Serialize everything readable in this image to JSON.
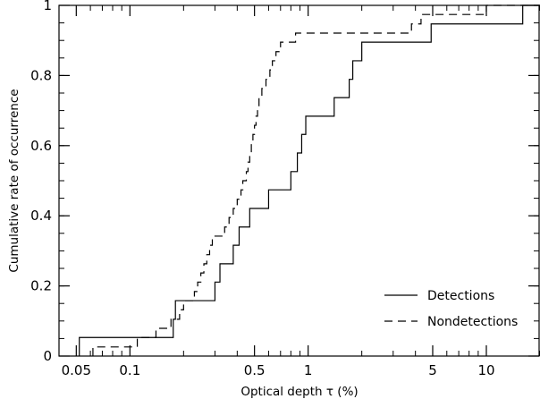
{
  "chart_data": {
    "type": "line",
    "step": true,
    "xscale": "log",
    "xlabel": "Optical depth τ (%)",
    "ylabel": "Cumulative rate of occurrence",
    "xlim": [
      0.04,
      20
    ],
    "ylim": [
      0,
      1
    ],
    "xticks": [
      {
        "value": 0.05,
        "label": "0.05"
      },
      {
        "value": 0.1,
        "label": "0.1"
      },
      {
        "value": 0.5,
        "label": "0.5"
      },
      {
        "value": 1,
        "label": "1"
      },
      {
        "value": 5,
        "label": "5"
      },
      {
        "value": 10,
        "label": "10"
      }
    ],
    "yticks": [
      {
        "value": 0,
        "label": "0"
      },
      {
        "value": 0.2,
        "label": "0.2"
      },
      {
        "value": 0.4,
        "label": "0.4"
      },
      {
        "value": 0.6,
        "label": "0.6"
      },
      {
        "value": 0.8,
        "label": "0.8"
      },
      {
        "value": 1,
        "label": "1"
      }
    ],
    "legend_position": "bottom-right",
    "series": [
      {
        "name": "Detections",
        "style": "solid",
        "points": [
          [
            0.052,
            0.0
          ],
          [
            0.052,
            0.053
          ],
          [
            0.175,
            0.053
          ],
          [
            0.175,
            0.105
          ],
          [
            0.18,
            0.105
          ],
          [
            0.18,
            0.158
          ],
          [
            0.3,
            0.158
          ],
          [
            0.3,
            0.211
          ],
          [
            0.32,
            0.211
          ],
          [
            0.32,
            0.263
          ],
          [
            0.38,
            0.263
          ],
          [
            0.38,
            0.316
          ],
          [
            0.41,
            0.316
          ],
          [
            0.41,
            0.368
          ],
          [
            0.47,
            0.368
          ],
          [
            0.47,
            0.421
          ],
          [
            0.6,
            0.421
          ],
          [
            0.6,
            0.474
          ],
          [
            0.8,
            0.474
          ],
          [
            0.8,
            0.526
          ],
          [
            0.87,
            0.526
          ],
          [
            0.87,
            0.579
          ],
          [
            0.92,
            0.579
          ],
          [
            0.92,
            0.632
          ],
          [
            0.97,
            0.632
          ],
          [
            0.97,
            0.684
          ],
          [
            1.4,
            0.684
          ],
          [
            1.4,
            0.737
          ],
          [
            1.7,
            0.737
          ],
          [
            1.7,
            0.789
          ],
          [
            1.78,
            0.789
          ],
          [
            1.78,
            0.842
          ],
          [
            2.0,
            0.842
          ],
          [
            2.0,
            0.895
          ],
          [
            4.9,
            0.895
          ],
          [
            4.9,
            0.947
          ],
          [
            16.0,
            0.947
          ],
          [
            16.0,
            1.0
          ],
          [
            20.0,
            1.0
          ]
        ]
      },
      {
        "name": "Nondetections",
        "style": "dashed",
        "points": [
          [
            0.062,
            0.0
          ],
          [
            0.062,
            0.026
          ],
          [
            0.11,
            0.026
          ],
          [
            0.11,
            0.053
          ],
          [
            0.14,
            0.053
          ],
          [
            0.14,
            0.079
          ],
          [
            0.17,
            0.079
          ],
          [
            0.17,
            0.105
          ],
          [
            0.19,
            0.105
          ],
          [
            0.19,
            0.132
          ],
          [
            0.2,
            0.132
          ],
          [
            0.2,
            0.158
          ],
          [
            0.23,
            0.158
          ],
          [
            0.23,
            0.184
          ],
          [
            0.24,
            0.184
          ],
          [
            0.24,
            0.211
          ],
          [
            0.25,
            0.211
          ],
          [
            0.25,
            0.237
          ],
          [
            0.26,
            0.237
          ],
          [
            0.26,
            0.263
          ],
          [
            0.27,
            0.263
          ],
          [
            0.27,
            0.289
          ],
          [
            0.28,
            0.289
          ],
          [
            0.28,
            0.316
          ],
          [
            0.29,
            0.316
          ],
          [
            0.29,
            0.342
          ],
          [
            0.34,
            0.342
          ],
          [
            0.34,
            0.368
          ],
          [
            0.36,
            0.368
          ],
          [
            0.36,
            0.395
          ],
          [
            0.38,
            0.395
          ],
          [
            0.38,
            0.421
          ],
          [
            0.4,
            0.421
          ],
          [
            0.4,
            0.447
          ],
          [
            0.42,
            0.447
          ],
          [
            0.42,
            0.474
          ],
          [
            0.43,
            0.474
          ],
          [
            0.43,
            0.5
          ],
          [
            0.45,
            0.5
          ],
          [
            0.45,
            0.526
          ],
          [
            0.46,
            0.526
          ],
          [
            0.46,
            0.553
          ],
          [
            0.47,
            0.553
          ],
          [
            0.47,
            0.579
          ],
          [
            0.48,
            0.579
          ],
          [
            0.48,
            0.605
          ],
          [
            0.49,
            0.605
          ],
          [
            0.49,
            0.632
          ],
          [
            0.5,
            0.632
          ],
          [
            0.5,
            0.658
          ],
          [
            0.51,
            0.658
          ],
          [
            0.51,
            0.684
          ],
          [
            0.52,
            0.684
          ],
          [
            0.52,
            0.711
          ],
          [
            0.53,
            0.711
          ],
          [
            0.53,
            0.737
          ],
          [
            0.55,
            0.737
          ],
          [
            0.55,
            0.763
          ],
          [
            0.58,
            0.763
          ],
          [
            0.58,
            0.789
          ],
          [
            0.61,
            0.789
          ],
          [
            0.61,
            0.816
          ],
          [
            0.63,
            0.816
          ],
          [
            0.63,
            0.842
          ],
          [
            0.66,
            0.842
          ],
          [
            0.66,
            0.868
          ],
          [
            0.7,
            0.868
          ],
          [
            0.7,
            0.895
          ],
          [
            0.85,
            0.895
          ],
          [
            0.85,
            0.921
          ],
          [
            3.8,
            0.921
          ],
          [
            3.8,
            0.947
          ],
          [
            4.3,
            0.947
          ],
          [
            4.3,
            0.974
          ],
          [
            10.0,
            0.974
          ],
          [
            10.0,
            1.0
          ],
          [
            20.0,
            1.0
          ]
        ]
      }
    ]
  }
}
